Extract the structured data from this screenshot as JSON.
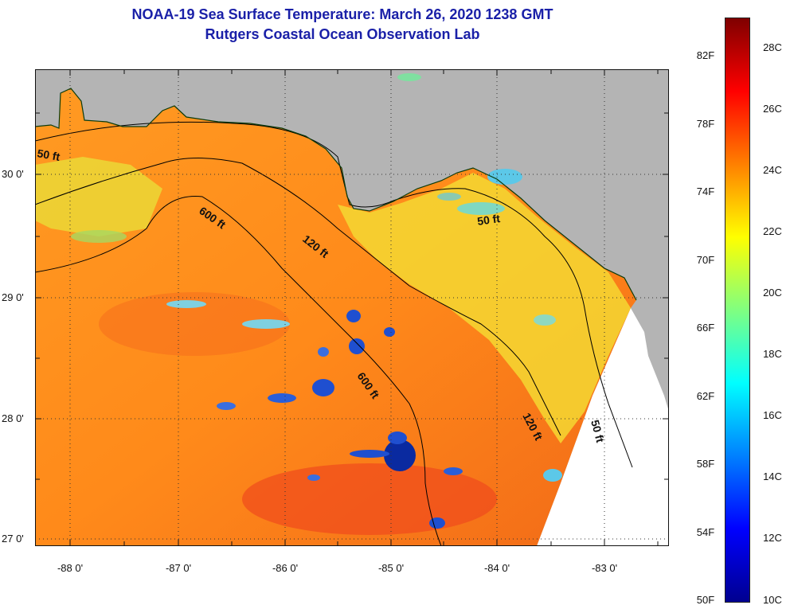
{
  "title": {
    "line1": "NOAA-19 Sea Surface Temperature:  March 26, 2020 1238 GMT",
    "line2": "Rutgers Coastal Ocean Observation Lab"
  },
  "map": {
    "lat_labels": [
      "30 0'",
      "29 0'",
      "28 0'",
      "27 0'"
    ],
    "lon_labels": [
      "-88 0'",
      "-87 0'",
      "-86 0'",
      "-85 0'",
      "-84 0'",
      "-83 0'"
    ],
    "contour_labels": [
      "50 ft",
      "600 ft",
      "120 ft",
      "50 ft",
      "600 ft",
      "120 ft",
      "50 ft"
    ],
    "colors": {
      "land": "#b4b4b4",
      "no_data": "#ffffff",
      "warm_sst": "#ff8c1a",
      "hot_sst": "#f04a1c",
      "cold_patch": "#1f4fd0",
      "cool_patch": "#5cc8e8"
    }
  },
  "colorbar": {
    "f_labels": [
      "82F",
      "78F",
      "74F",
      "70F",
      "66F",
      "62F",
      "58F",
      "54F",
      "50F"
    ],
    "c_labels": [
      "28C",
      "26C",
      "24C",
      "22C",
      "20C",
      "18C",
      "16C",
      "14C",
      "12C",
      "10C"
    ],
    "gradient_colors": [
      "#7f0000",
      "#ff0000",
      "#ff8000",
      "#ffff00",
      "#80ff80",
      "#00ffff",
      "#0080ff",
      "#0000ff",
      "#00008f"
    ]
  }
}
